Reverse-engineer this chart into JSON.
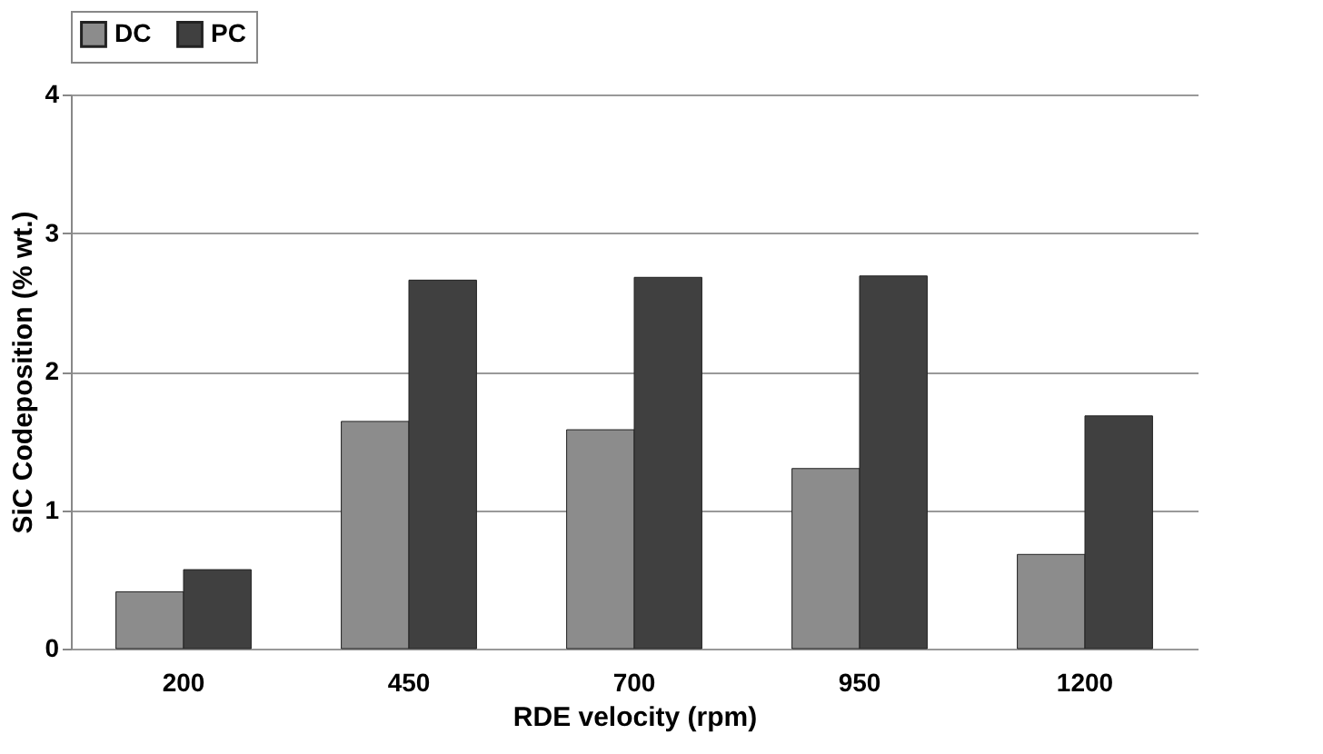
{
  "chart_data": {
    "type": "bar",
    "categories": [
      "200",
      "450",
      "700",
      "950",
      "1200"
    ],
    "series": [
      {
        "name": "DC",
        "color": "#8c8c8c",
        "values": [
          0.41,
          1.64,
          1.58,
          1.3,
          0.68
        ]
      },
      {
        "name": "PC",
        "color": "#404040",
        "values": [
          0.57,
          2.66,
          2.68,
          2.69,
          1.68
        ]
      }
    ],
    "xlabel": "RDE velocity (rpm)",
    "ylabel": "SiC Codeposition (% wt.)",
    "ylim": [
      0,
      4
    ],
    "yticks": [
      0,
      1,
      2,
      3,
      4
    ],
    "grid": "y",
    "legend": "top"
  }
}
